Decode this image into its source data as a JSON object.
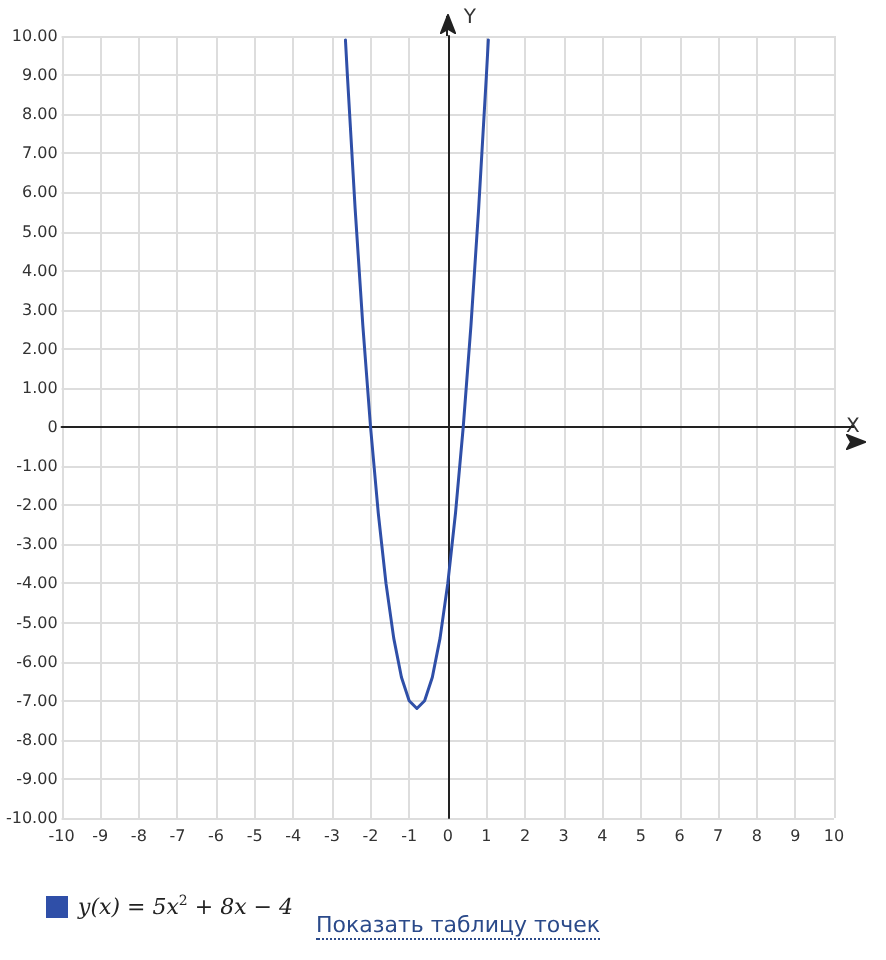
{
  "chart_data": {
    "type": "line",
    "xlabel": "X",
    "ylabel": "Y",
    "series": [
      {
        "name": "y(x) = 5x$^{2}$ + 8x − 4",
        "color": "#2f4fa8",
        "x": [
          -2.65,
          -2.6,
          -2.4,
          -2.2,
          -2.0,
          -1.8,
          -1.6,
          -1.4,
          -1.2,
          -1.0,
          -0.8,
          -0.6,
          -0.4,
          -0.2,
          0,
          0.2,
          0.4,
          0.6,
          0.8,
          1.0,
          1.05
        ],
        "values": [
          9.9,
          9.0,
          5.6,
          2.6,
          0,
          -2.2,
          -4,
          -5.4,
          -6.4,
          -7,
          -7.2,
          -7,
          -6.4,
          -5.4,
          -4,
          -2.2,
          0,
          2.6,
          5.6,
          9.0,
          9.9
        ]
      }
    ],
    "xlim": [
      -10,
      10
    ],
    "ylim": [
      -10,
      10
    ],
    "xticks": [
      -10,
      -9,
      -8,
      -7,
      -6,
      -5,
      -4,
      -3,
      -2,
      -1,
      0,
      1,
      2,
      3,
      4,
      5,
      6,
      7,
      8,
      9,
      10
    ],
    "yticks": [
      {
        "value": -10,
        "label": "-10.00"
      },
      {
        "value": -9,
        "label": "-9.00"
      },
      {
        "value": -8,
        "label": "-8.00"
      },
      {
        "value": -7,
        "label": "-7.00"
      },
      {
        "value": -6,
        "label": "-6.00"
      },
      {
        "value": -5,
        "label": "-5.00"
      },
      {
        "value": -4,
        "label": "-4.00"
      },
      {
        "value": -3,
        "label": "-3.00"
      },
      {
        "value": -2,
        "label": "-2.00"
      },
      {
        "value": -1,
        "label": "-1.00"
      },
      0,
      {
        "value": 1,
        "label": "1.00"
      },
      {
        "value": 2,
        "label": "2.00"
      },
      {
        "value": 3,
        "label": "3.00"
      },
      {
        "value": 4,
        "label": "4.00"
      },
      {
        "value": 5,
        "label": "5.00"
      },
      {
        "value": 6,
        "label": "6.00"
      },
      {
        "value": 7,
        "label": "7.00"
      },
      {
        "value": 8,
        "label": "8.00"
      },
      {
        "value": 9,
        "label": "9.00"
      },
      {
        "value": 10,
        "label": "10.00"
      }
    ],
    "grid": true,
    "legend": "bottom left",
    "marker": "none",
    "line_style": "solid",
    "annotations": [
      "Показать таблицу точек"
    ]
  }
}
